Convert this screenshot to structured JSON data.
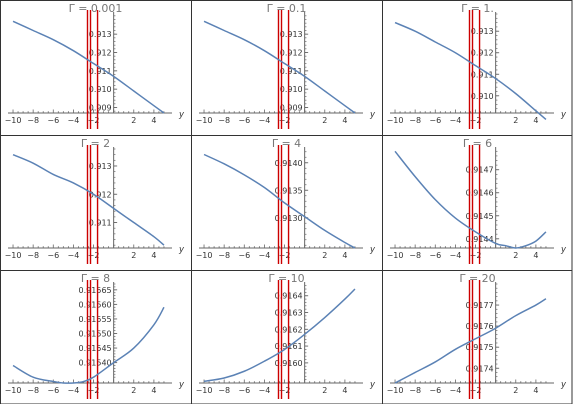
{
  "colors": {
    "border": "#333333",
    "axis": "#666666",
    "curve": "#5b82b5",
    "vline": "#cc0000",
    "text": "#333333",
    "title": "#777777"
  },
  "chart_data": [
    {
      "type": "line",
      "title": "Γ = 0.001",
      "xlabel": "y",
      "xlim": [
        -10.5,
        5.6
      ],
      "ylim": [
        0.9087,
        0.9141
      ],
      "xticks": [
        "−10",
        "−8",
        "−6",
        "−4",
        "−2",
        "2",
        "4"
      ],
      "yticks": [
        "0.909",
        "0.910",
        "0.911",
        "0.912",
        "0.913"
      ],
      "vlines": [
        -2.6,
        -2.3,
        -1.6
      ],
      "x": [
        -10,
        -8,
        -6,
        -4,
        -2,
        0,
        2,
        4,
        5
      ],
      "y": [
        0.9137,
        0.9132,
        0.9127,
        0.9121,
        0.9114,
        0.9107,
        0.9099,
        0.9091,
        0.9087
      ]
    },
    {
      "type": "line",
      "title": "Γ = 0.1",
      "xlabel": "y",
      "xlim": [
        -10.5,
        5.6
      ],
      "ylim": [
        0.9087,
        0.9141
      ],
      "xticks": [
        "−10",
        "−8",
        "−6",
        "−4",
        "−2",
        "2",
        "4"
      ],
      "yticks": [
        "0.909",
        "0.910",
        "0.911",
        "0.912",
        "0.913"
      ],
      "vlines": [
        -2.6,
        -2.3,
        -1.6
      ],
      "x": [
        -10,
        -8,
        -6,
        -4,
        -2,
        0,
        2,
        4,
        5
      ],
      "y": [
        0.9137,
        0.9132,
        0.9127,
        0.9121,
        0.9114,
        0.9107,
        0.9099,
        0.9091,
        0.9087
      ]
    },
    {
      "type": "line",
      "title": "Γ = 1.",
      "xlabel": "y",
      "xlim": [
        -10.5,
        5.6
      ],
      "ylim": [
        0.9092,
        0.9138
      ],
      "xticks": [
        "−10",
        "−8",
        "−6",
        "−4",
        "−2",
        "2",
        "4"
      ],
      "yticks": [
        "0.910",
        "0.911",
        "0.912",
        "0.913"
      ],
      "vlines": [
        -2.6,
        -2.3,
        -1.6
      ],
      "x": [
        -10,
        -8,
        -6,
        -4,
        -2,
        0,
        2,
        4,
        5
      ],
      "y": [
        0.9134,
        0.913,
        0.9125,
        0.912,
        0.9114,
        0.9108,
        0.9101,
        0.9093,
        0.9089
      ]
    },
    {
      "type": "line",
      "title": "Γ = 2",
      "xlabel": "y",
      "xlim": [
        -10.5,
        5.6
      ],
      "ylim": [
        0.9101,
        0.9136
      ],
      "xticks": [
        "−10",
        "−8",
        "−6",
        "−4",
        "−2",
        "2",
        "4"
      ],
      "yticks": [
        "0.911",
        "0.912",
        "0.913"
      ],
      "vlines": [
        -2.6,
        -2.3,
        -1.6
      ],
      "x": [
        -10,
        -8,
        -6,
        -4,
        -2,
        0,
        2,
        4,
        5
      ],
      "y": [
        0.9134,
        0.9131,
        0.9127,
        0.9124,
        0.912,
        0.9115,
        0.911,
        0.9105,
        0.9102
      ]
    },
    {
      "type": "line",
      "title": "Γ = 4",
      "xlabel": "y",
      "xlim": [
        -10.5,
        5.6
      ],
      "ylim": [
        0.91245,
        0.91425
      ],
      "xticks": [
        "−10",
        "−8",
        "−6",
        "−4",
        "−2",
        "2",
        "4"
      ],
      "yticks": [
        "0.9130",
        "0.9135",
        "0.9140"
      ],
      "vlines": [
        -2.6,
        -2.3,
        -1.6
      ],
      "x": [
        -10,
        -8,
        -6,
        -4,
        -2,
        0,
        2,
        4,
        5
      ],
      "y": [
        0.91415,
        0.91398,
        0.91378,
        0.91355,
        0.91327,
        0.91302,
        0.91277,
        0.91255,
        0.91245
      ]
    },
    {
      "type": "line",
      "title": "Γ = 6",
      "xlabel": "y",
      "xlim": [
        -10.5,
        5.6
      ],
      "ylim": [
        0.91436,
        0.91479
      ],
      "xticks": [
        "−10",
        "−8",
        "−6",
        "−4",
        "−2",
        "2",
        "4"
      ],
      "yticks": [
        "0.9144",
        "0.9145",
        "0.9146",
        "0.9147"
      ],
      "vlines": [
        -2.6,
        -2.3,
        -1.6
      ],
      "x": [
        -10,
        -8,
        -6,
        -4,
        -2,
        0,
        1,
        2,
        3,
        4,
        5
      ],
      "y": [
        0.91478,
        0.91467,
        0.91457,
        0.91449,
        0.91443,
        0.91438,
        0.91437,
        0.91436,
        0.91437,
        0.91439,
        0.91443
      ]
    },
    {
      "type": "line",
      "title": "Γ = 8",
      "xlabel": "y",
      "xlim": [
        -10.5,
        5.6
      ],
      "ylim": [
        0.91533,
        0.91567
      ],
      "xticks": [
        "−10",
        "−8",
        "−6",
        "−4",
        "−2",
        "2",
        "4"
      ],
      "yticks": [
        "0.91540",
        "0.91545",
        "0.91550",
        "0.91555",
        "0.91560",
        "0.91565"
      ],
      "vlines": [
        -2.6,
        -2.3,
        -1.6
      ],
      "x": [
        -10,
        -8,
        -6,
        -5,
        -4,
        -3,
        -2,
        0,
        2,
        4,
        5
      ],
      "y": [
        0.91539,
        0.91535,
        0.915335,
        0.91533,
        0.91533,
        0.915335,
        0.91535,
        0.9154,
        0.91545,
        0.91553,
        0.91559
      ]
    },
    {
      "type": "line",
      "title": "Γ = 10",
      "xlabel": "y",
      "xlim": [
        -10.5,
        5.6
      ],
      "ylim": [
        0.91588,
        0.91647
      ],
      "xticks": [
        "−10",
        "−8",
        "−6",
        "−4",
        "−2",
        "2",
        "4"
      ],
      "yticks": [
        "0.9160",
        "0.9161",
        "0.9162",
        "0.9163",
        "0.9164"
      ],
      "vlines": [
        -2.6,
        -2.3,
        -1.6
      ],
      "x": [
        -10,
        -8,
        -6,
        -4,
        -2,
        0,
        2,
        4,
        5
      ],
      "y": [
        0.91589,
        0.91591,
        0.91595,
        0.91601,
        0.91608,
        0.91617,
        0.91627,
        0.91638,
        0.91644
      ]
    },
    {
      "type": "line",
      "title": "Γ = 20",
      "xlabel": "y",
      "xlim": [
        -10.5,
        5.6
      ],
      "ylim": [
        0.91733,
        0.9178
      ],
      "xticks": [
        "−10",
        "−8",
        "−6",
        "−4",
        "−2",
        "2",
        "4"
      ],
      "yticks": [
        "0.9174",
        "0.9175",
        "0.9176",
        "0.9177"
      ],
      "vlines": [
        -2.6,
        -2.3,
        -1.6
      ],
      "x": [
        -10,
        -8,
        -6,
        -4,
        -2,
        0,
        2,
        4,
        5
      ],
      "y": [
        0.91733,
        0.91738,
        0.91743,
        0.91749,
        0.91754,
        0.91759,
        0.91765,
        0.9177,
        0.91773
      ]
    }
  ]
}
